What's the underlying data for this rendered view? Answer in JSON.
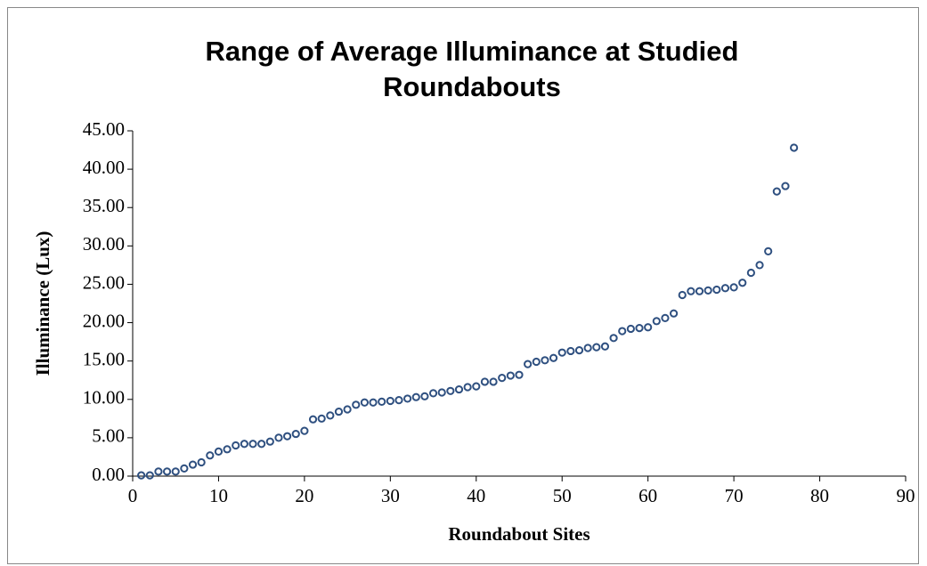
{
  "chart_data": {
    "type": "scatter",
    "title": "Range of Average Illuminance at Studied Roundabouts",
    "xlabel": "Roundabout Sites",
    "ylabel": "Illuminance (Lux)",
    "marker_color": "#2f5080",
    "x": [
      1,
      2,
      3,
      4,
      5,
      6,
      7,
      8,
      9,
      10,
      11,
      12,
      13,
      14,
      15,
      16,
      17,
      18,
      19,
      20,
      21,
      22,
      23,
      24,
      25,
      26,
      27,
      28,
      29,
      30,
      31,
      32,
      33,
      34,
      35,
      36,
      37,
      38,
      39,
      40,
      41,
      42,
      43,
      44,
      45,
      46,
      47,
      48,
      49,
      50,
      51,
      52,
      53,
      54,
      55,
      56,
      57,
      58,
      59,
      60,
      61,
      62,
      63,
      64,
      65,
      66,
      67,
      68,
      69,
      70,
      71,
      72,
      73,
      74,
      75,
      76,
      77
    ],
    "y": [
      0.1,
      0.1,
      0.6,
      0.6,
      0.6,
      1.0,
      1.5,
      1.8,
      2.7,
      3.2,
      3.5,
      4.0,
      4.2,
      4.2,
      4.2,
      4.5,
      5.0,
      5.2,
      5.5,
      5.9,
      7.4,
      7.5,
      7.9,
      8.4,
      8.7,
      9.3,
      9.6,
      9.6,
      9.7,
      9.8,
      9.9,
      10.1,
      10.3,
      10.4,
      10.8,
      10.9,
      11.1,
      11.3,
      11.6,
      11.7,
      12.3,
      12.3,
      12.8,
      13.1,
      13.2,
      14.6,
      14.9,
      15.1,
      15.4,
      16.1,
      16.3,
      16.4,
      16.7,
      16.8,
      16.9,
      18.0,
      18.9,
      19.2,
      19.3,
      19.4,
      20.2,
      20.6,
      21.2,
      23.6,
      24.1,
      24.1,
      24.2,
      24.3,
      24.5,
      24.6,
      25.2,
      26.5,
      27.5,
      29.3,
      37.1,
      37.8,
      42.8
    ],
    "xlim": [
      0,
      90
    ],
    "xticks": [
      0,
      10,
      20,
      30,
      40,
      50,
      60,
      70,
      80,
      90
    ],
    "ylim": [
      0,
      45
    ],
    "yticks": [
      {
        "value": 0,
        "label": "0.00"
      },
      {
        "value": 5,
        "label": "5.00"
      },
      {
        "value": 10,
        "label": "10.00"
      },
      {
        "value": 15,
        "label": "15.00"
      },
      {
        "value": 20,
        "label": "20.00"
      },
      {
        "value": 25,
        "label": "25.00"
      },
      {
        "value": 30,
        "label": "30.00"
      },
      {
        "value": 35,
        "label": "35.00"
      },
      {
        "value": 40,
        "label": "40.00"
      },
      {
        "value": 45,
        "label": "45.00"
      }
    ],
    "grid": false
  }
}
